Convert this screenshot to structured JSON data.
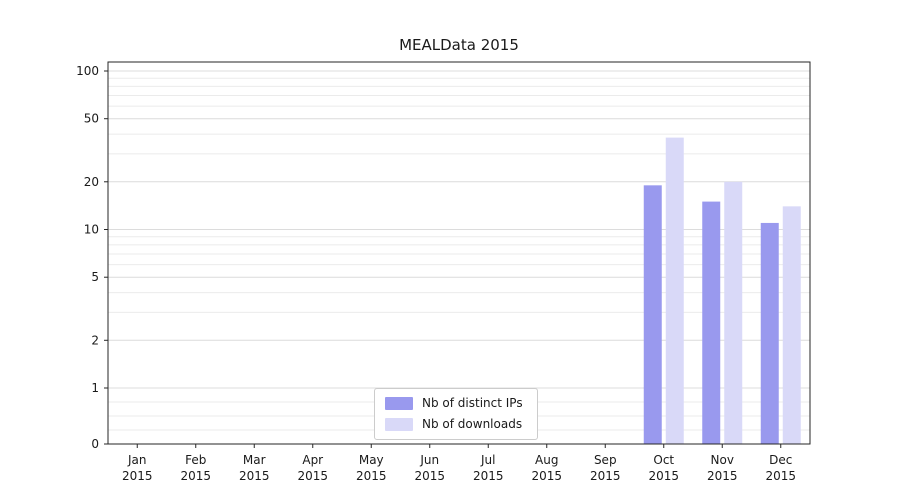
{
  "chart_data": {
    "type": "bar",
    "title": "MEALData 2015",
    "y_scale": "symlog",
    "ylim": [
      0,
      100
    ],
    "grid": true,
    "legend_position": "lower center",
    "y_ticks": [
      0,
      1,
      2,
      5,
      10,
      20,
      50,
      100
    ],
    "x_tick_year": "2015",
    "x_tick_months": [
      "Jan",
      "Feb",
      "Mar",
      "Apr",
      "May",
      "Jun",
      "Jul",
      "Aug",
      "Sep",
      "Oct",
      "Nov",
      "Dec"
    ],
    "categories": [
      "Jan 2015",
      "Feb 2015",
      "Mar 2015",
      "Apr 2015",
      "May 2015",
      "Jun 2015",
      "Jul 2015",
      "Aug 2015",
      "Sep 2015",
      "Oct 2015",
      "Nov 2015",
      "Dec 2015"
    ],
    "series": [
      {
        "name": "Nb of distinct IPs",
        "slug": "distinct-ips",
        "color": "#9999ee",
        "values": [
          null,
          null,
          null,
          null,
          null,
          null,
          null,
          null,
          null,
          19,
          15,
          11
        ]
      },
      {
        "name": "Nb of downloads",
        "slug": "downloads",
        "color": "#d9d9f8",
        "values": [
          null,
          null,
          null,
          null,
          null,
          null,
          null,
          null,
          null,
          38,
          20,
          14
        ]
      }
    ]
  }
}
